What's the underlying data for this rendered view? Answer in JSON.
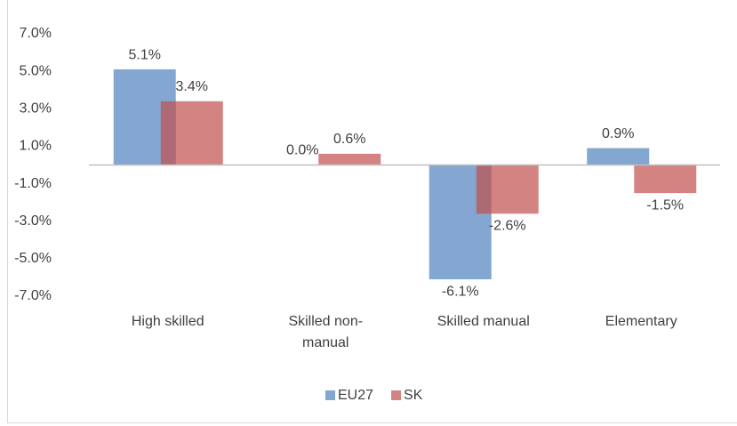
{
  "chart_data": {
    "type": "bar",
    "categories": [
      "High skilled",
      "Skilled non-manual",
      "Skilled manual",
      "Elementary"
    ],
    "series": [
      {
        "name": "EU27",
        "color": "#4f81bd",
        "values": [
          5.1,
          0.0,
          -6.1,
          0.9
        ],
        "value_labels": [
          "5.1%",
          "0.0%",
          "-6.1%",
          "0.9%"
        ]
      },
      {
        "name": "SK",
        "color": "#c0504d",
        "values": [
          3.4,
          0.6,
          -2.6,
          -1.5
        ],
        "value_labels": [
          "3.4%",
          "0.6%",
          "-2.6%",
          "-1.5%"
        ]
      }
    ],
    "ylim": [
      -7,
      7
    ],
    "yticks": [
      {
        "value": -7,
        "label": "-7.0%"
      },
      {
        "value": -5,
        "label": "-5.0%"
      },
      {
        "value": -3,
        "label": "-3.0%"
      },
      {
        "value": -1,
        "label": "-1.0%"
      },
      {
        "value": 1,
        "label": "1.0%"
      },
      {
        "value": 3,
        "label": "3.0%"
      },
      {
        "value": 5,
        "label": "5.0%"
      },
      {
        "value": 7,
        "label": "7.0%"
      }
    ],
    "grid": false,
    "legend": "bottom"
  }
}
